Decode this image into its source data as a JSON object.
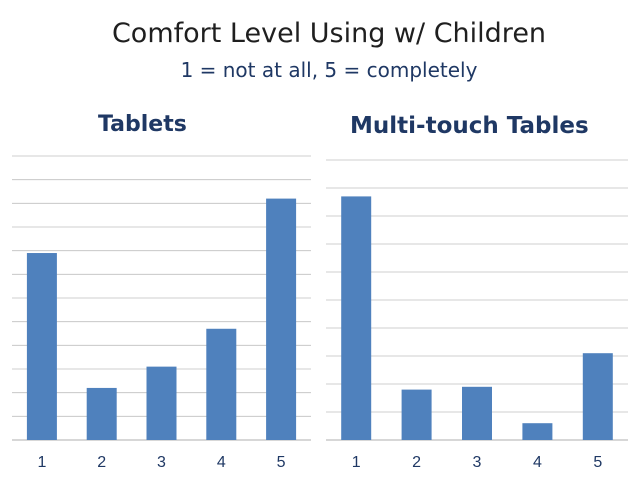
{
  "header": {
    "title": "Comfort Level Using w/ Children",
    "subtitle": "1 = not at all, 5 = completely"
  },
  "style": {
    "bar_color": "#4f81bd",
    "grid_color": "#bfbfbf",
    "axis_text_color": "#1f3864"
  },
  "chart_data": [
    {
      "type": "bar",
      "title": "Tablets",
      "categories": [
        "1",
        "2",
        "3",
        "4",
        "5"
      ],
      "values": [
        7.9,
        2.2,
        3.1,
        4.7,
        10.2
      ],
      "ylim": [
        0,
        12
      ],
      "grid": true,
      "legend": "none"
    },
    {
      "type": "bar",
      "title": "Multi-touch Tables",
      "categories": [
        "1",
        "2",
        "3",
        "4",
        "5"
      ],
      "values": [
        8.7,
        1.8,
        1.9,
        0.6,
        3.1
      ],
      "ylim": [
        0,
        10
      ],
      "grid": true,
      "legend": "none"
    }
  ]
}
